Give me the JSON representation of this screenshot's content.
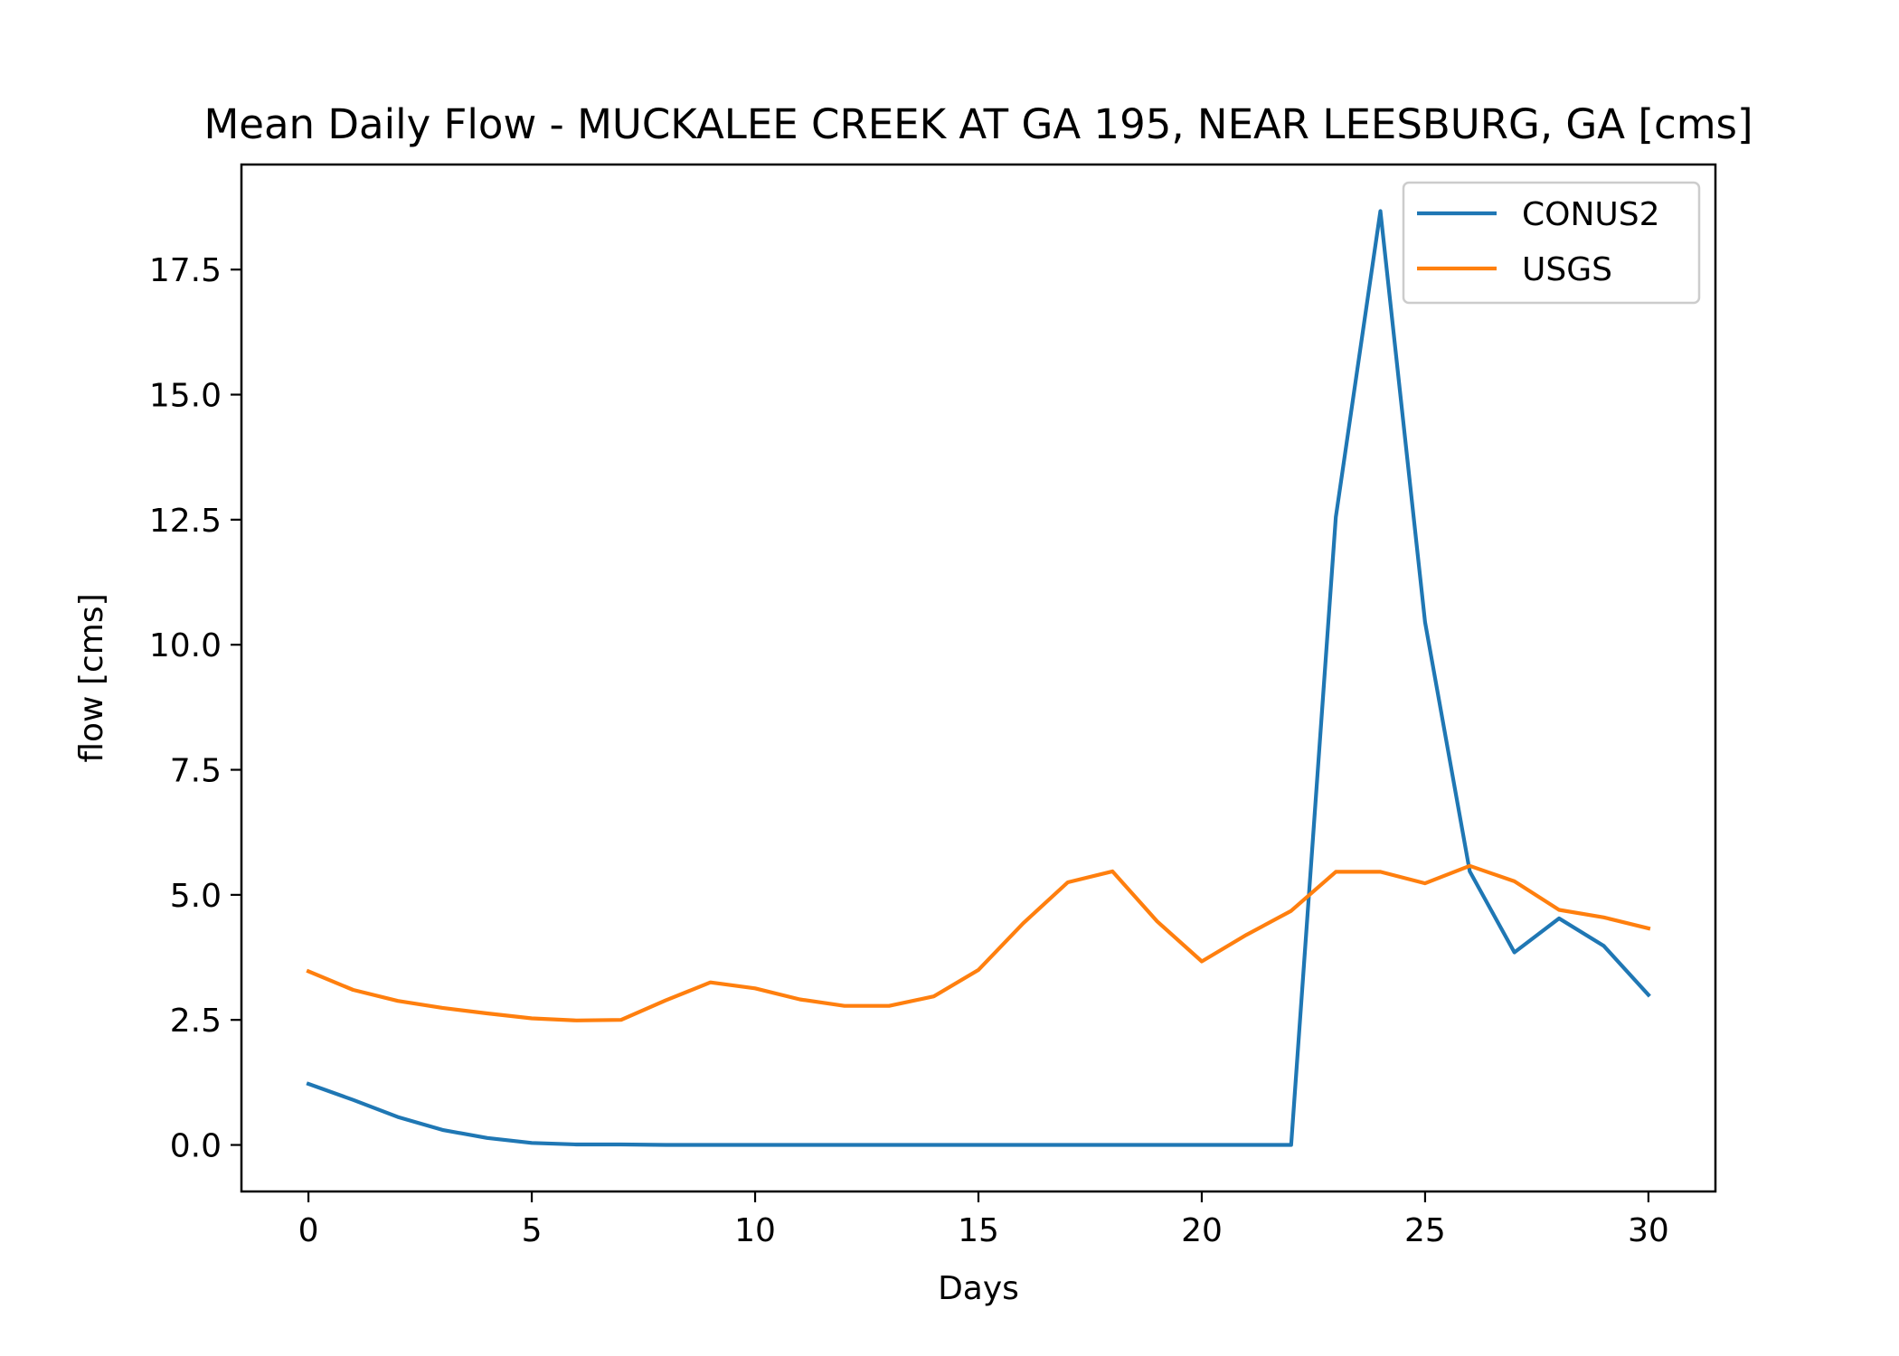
{
  "chart_data": {
    "type": "line",
    "title": "Mean Daily Flow - MUCKALEE CREEK AT GA 195, NEAR LEESBURG, GA [cms]",
    "xlabel": "Days",
    "ylabel": "flow [cms]",
    "xlim": [
      -1.5,
      31.5
    ],
    "ylim": [
      -0.93,
      19.6
    ],
    "xticks": [
      0,
      5,
      10,
      15,
      20,
      25,
      30
    ],
    "xtick_labels": [
      "0",
      "5",
      "10",
      "15",
      "20",
      "25",
      "30"
    ],
    "yticks": [
      0.0,
      2.5,
      5.0,
      7.5,
      10.0,
      12.5,
      15.0,
      17.5
    ],
    "ytick_labels": [
      "0.0",
      "2.5",
      "5.0",
      "7.5",
      "10.0",
      "12.5",
      "15.0",
      "17.5"
    ],
    "grid": false,
    "legend_position": "top-right",
    "x": [
      0,
      1,
      2,
      3,
      4,
      5,
      6,
      7,
      8,
      9,
      10,
      11,
      12,
      13,
      14,
      15,
      16,
      17,
      18,
      19,
      20,
      21,
      22,
      23,
      24,
      25,
      26,
      27,
      28,
      29,
      30
    ],
    "series": [
      {
        "name": "CONUS2",
        "color": "#1f77b4",
        "values": [
          1.22,
          0.9,
          0.56,
          0.3,
          0.14,
          0.04,
          0.01,
          0.01,
          0.0,
          0.0,
          0.0,
          0.0,
          0.0,
          0.0,
          0.0,
          0.0,
          0.0,
          0.0,
          0.0,
          0.0,
          0.0,
          0.0,
          0.0,
          12.55,
          18.67,
          10.45,
          5.47,
          3.85,
          4.53,
          3.98,
          3.0
        ]
      },
      {
        "name": "USGS",
        "color": "#ff7f0e",
        "values": [
          3.47,
          3.1,
          2.88,
          2.74,
          2.63,
          2.53,
          2.49,
          2.5,
          2.89,
          3.25,
          3.13,
          2.91,
          2.78,
          2.78,
          2.97,
          3.5,
          4.43,
          5.25,
          5.47,
          4.47,
          3.67,
          4.2,
          4.68,
          5.46,
          5.46,
          5.23,
          5.58,
          5.27,
          4.7,
          4.55,
          4.33
        ]
      }
    ]
  }
}
